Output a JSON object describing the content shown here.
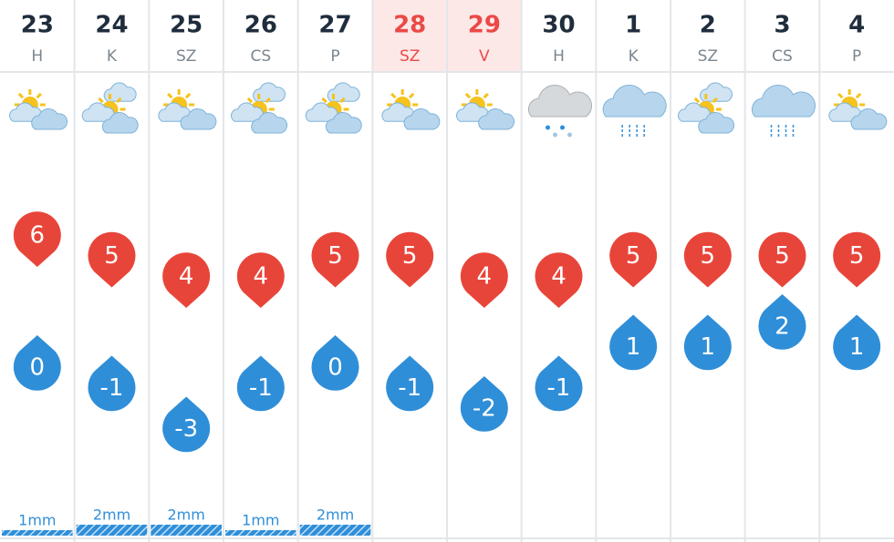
{
  "days": [
    {
      "date": "23",
      "weekday": "H",
      "weekend": false,
      "icon": "partly-sunny",
      "max": 6,
      "min": 0,
      "precip": 1,
      "precip_label": "1mm"
    },
    {
      "date": "24",
      "weekday": "K",
      "weekend": false,
      "icon": "cloudy-sun",
      "max": 5,
      "min": -1,
      "precip": 2,
      "precip_label": "2mm"
    },
    {
      "date": "25",
      "weekday": "SZ",
      "weekend": false,
      "icon": "partly-sunny",
      "max": 4,
      "min": -3,
      "precip": 2,
      "precip_label": "2mm"
    },
    {
      "date": "26",
      "weekday": "CS",
      "weekend": false,
      "icon": "cloudy-sun",
      "max": 4,
      "min": -1,
      "precip": 1,
      "precip_label": "1mm"
    },
    {
      "date": "27",
      "weekday": "P",
      "weekend": false,
      "icon": "cloudy-sun",
      "max": 5,
      "min": 0,
      "precip": 2,
      "precip_label": "2mm"
    },
    {
      "date": "28",
      "weekday": "SZ",
      "weekend": true,
      "icon": "partly-sunny",
      "max": 5,
      "min": -1,
      "precip": null,
      "precip_label": null
    },
    {
      "date": "29",
      "weekday": "V",
      "weekend": true,
      "icon": "partly-sunny",
      "max": 4,
      "min": -2,
      "precip": null,
      "precip_label": null
    },
    {
      "date": "30",
      "weekday": "H",
      "weekend": false,
      "icon": "sleet",
      "max": 4,
      "min": -1,
      "precip": null,
      "precip_label": null
    },
    {
      "date": "1",
      "weekday": "K",
      "weekend": false,
      "icon": "rain",
      "max": 5,
      "min": 1,
      "precip": null,
      "precip_label": null
    },
    {
      "date": "2",
      "weekday": "SZ",
      "weekend": false,
      "icon": "cloudy-sun",
      "max": 5,
      "min": 1,
      "precip": null,
      "precip_label": null
    },
    {
      "date": "3",
      "weekday": "CS",
      "weekend": false,
      "icon": "rain",
      "max": 5,
      "min": 2,
      "precip": null,
      "precip_label": null
    },
    {
      "date": "4",
      "weekday": "P",
      "weekend": false,
      "icon": "partly-sunny",
      "max": 5,
      "min": 1,
      "precip": null,
      "precip_label": null
    }
  ]
}
